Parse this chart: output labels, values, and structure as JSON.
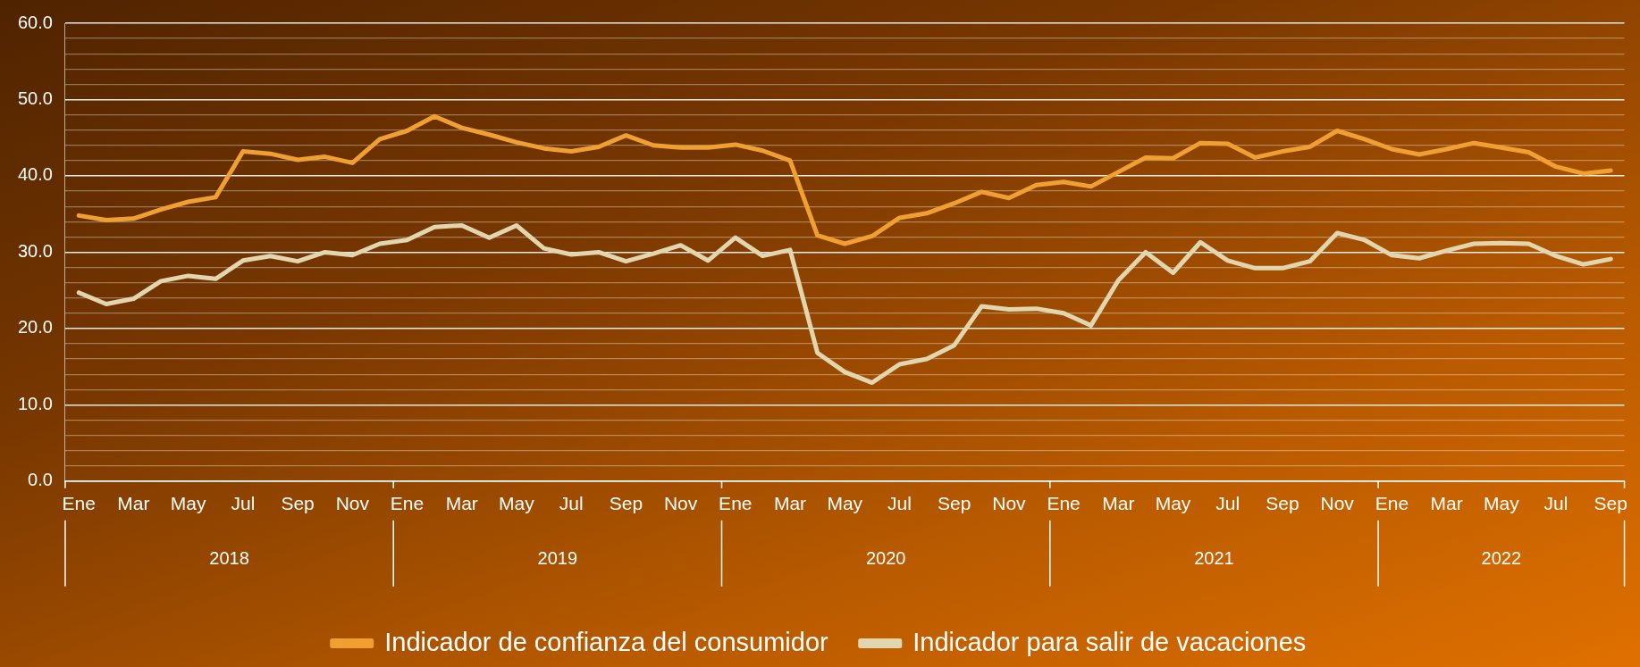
{
  "chart_data": {
    "type": "line",
    "categories": [
      "Ene",
      null,
      "Mar",
      null,
      "May",
      null,
      "Jul",
      null,
      "Sep",
      null,
      "Nov",
      null,
      "Ene",
      null,
      "Mar",
      null,
      "May",
      null,
      "Jul",
      null,
      "Sep",
      null,
      "Nov",
      null,
      "Ene",
      null,
      "Mar",
      null,
      "May",
      null,
      "Jul",
      null,
      "Sep",
      null,
      "Nov",
      null,
      "Ene",
      null,
      "Mar",
      null,
      "May",
      null,
      "Jul",
      null,
      "Sep",
      null,
      "Nov",
      null,
      "Ene",
      null,
      "Mar",
      null,
      "May",
      null,
      "Jul",
      null,
      "Sep"
    ],
    "series": [
      {
        "name": "Indicador de confianza del consumidor",
        "color": "#f0a030",
        "values": [
          34.8,
          34.2,
          34.4,
          35.6,
          36.6,
          37.2,
          43.2,
          42.9,
          42.1,
          42.5,
          41.7,
          44.8,
          45.9,
          47.8,
          46.3,
          45.4,
          44.4,
          43.6,
          43.2,
          43.8,
          45.3,
          44.0,
          43.7,
          43.7,
          44.1,
          43.3,
          42.0,
          32.2,
          31.1,
          32.1,
          34.5,
          35.1,
          36.4,
          37.9,
          37.1,
          38.8,
          39.2,
          38.6,
          40.5,
          42.4,
          42.3,
          44.3,
          44.2,
          42.4,
          43.2,
          43.8,
          45.9,
          44.8,
          43.5,
          42.8,
          43.5,
          44.3,
          43.7,
          43.1,
          41.2,
          40.3,
          40.7
        ]
      },
      {
        "name": "Indicador para salir de vacaciones",
        "color": "#e2d6b0",
        "values": [
          24.7,
          23.2,
          23.9,
          26.2,
          26.9,
          26.5,
          28.9,
          29.5,
          28.8,
          30.0,
          29.6,
          31.1,
          31.6,
          33.3,
          33.5,
          31.9,
          33.5,
          30.5,
          29.7,
          30.0,
          28.8,
          29.8,
          30.9,
          28.9,
          31.9,
          29.5,
          30.3,
          16.8,
          14.3,
          12.9,
          15.3,
          16.0,
          17.8,
          22.9,
          22.5,
          22.6,
          22.0,
          20.4,
          26.3,
          30.0,
          27.3,
          31.3,
          28.9,
          27.9,
          27.9,
          28.8,
          32.5,
          31.6,
          29.6,
          29.2,
          30.2,
          31.1,
          31.2,
          31.1,
          29.5,
          28.4,
          29.1
        ]
      }
    ],
    "ylim": [
      0,
      60
    ],
    "yticks": [
      {
        "value": 0,
        "label": "0.0"
      },
      {
        "value": 2,
        "label": null
      },
      {
        "value": 4,
        "label": null
      },
      {
        "value": 6,
        "label": null
      },
      {
        "value": 8,
        "label": null
      },
      {
        "value": 10,
        "label": "10.0"
      },
      {
        "value": 12,
        "label": null
      },
      {
        "value": 14,
        "label": null
      },
      {
        "value": 16,
        "label": null
      },
      {
        "value": 18,
        "label": null
      },
      {
        "value": 20,
        "label": "20.0"
      },
      {
        "value": 22,
        "label": null
      },
      {
        "value": 24,
        "label": null
      },
      {
        "value": 26,
        "label": null
      },
      {
        "value": 28,
        "label": null
      },
      {
        "value": 30,
        "label": "30.0"
      },
      {
        "value": 32,
        "label": null
      },
      {
        "value": 34,
        "label": null
      },
      {
        "value": 36,
        "label": null
      },
      {
        "value": 38,
        "label": null
      },
      {
        "value": 40,
        "label": "40.0"
      },
      {
        "value": 42,
        "label": null
      },
      {
        "value": 44,
        "label": null
      },
      {
        "value": 46,
        "label": null
      },
      {
        "value": 48,
        "label": null
      },
      {
        "value": 50,
        "label": "50.0"
      },
      {
        "value": 52,
        "label": null
      },
      {
        "value": 54,
        "label": null
      },
      {
        "value": 56,
        "label": null
      },
      {
        "value": 58,
        "label": null
      },
      {
        "value": 60,
        "label": "60.0"
      }
    ],
    "annotations": [
      "2018",
      "2019",
      "2020",
      "2021",
      "2022"
    ],
    "grid": "y",
    "legend": "bottom",
    "marker": "none",
    "line_style": "solid"
  }
}
